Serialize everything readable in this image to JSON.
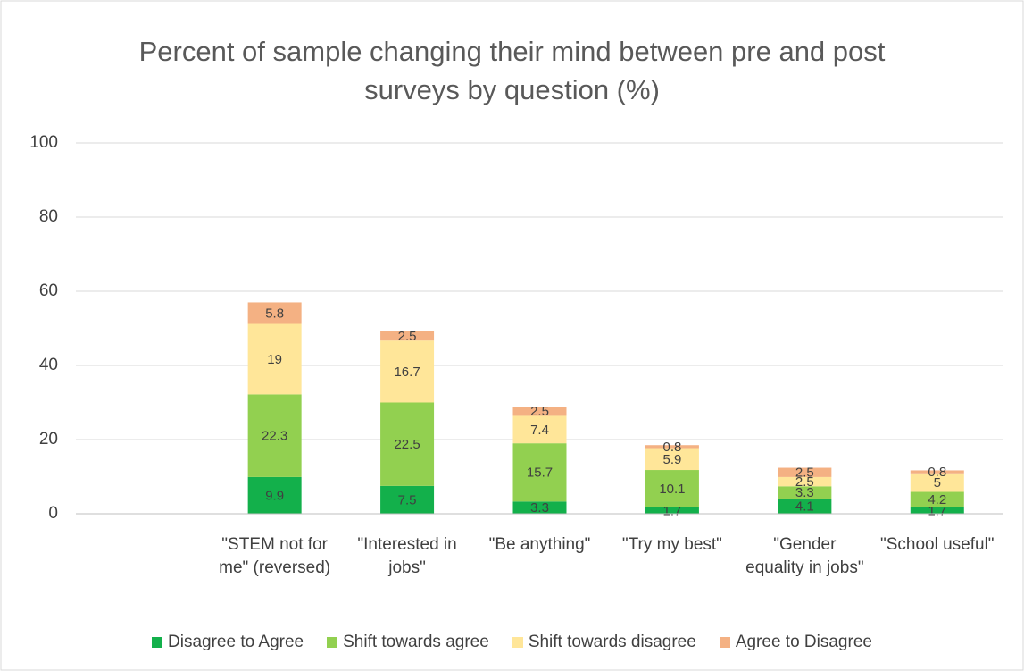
{
  "chart_data": {
    "type": "stacked_bar",
    "title": "Percent of sample changing their mind between pre and post surveys by question (%)",
    "categories": [
      null,
      "\"STEM not for me\" (reversed)",
      "\"Interested in jobs\"",
      "\"Be anything\"",
      "\"Try my best\"",
      "\"Gender equality in jobs\"",
      "\"School useful\""
    ],
    "series": [
      {
        "name": "Disagree to Agree",
        "color": "#13b04b",
        "values": [
          null,
          9.9,
          7.5,
          3.3,
          1.7,
          4.1,
          1.7
        ]
      },
      {
        "name": "Shift towards agree",
        "color": "#92d050",
        "values": [
          null,
          22.3,
          22.5,
          15.7,
          10.1,
          3.3,
          4.2
        ]
      },
      {
        "name": "Shift towards disagree",
        "color": "#ffe699",
        "values": [
          null,
          19,
          16.7,
          7.4,
          5.9,
          2.5,
          5
        ]
      },
      {
        "name": "Agree to Disagree",
        "color": "#f4b183",
        "values": [
          null,
          5.8,
          2.5,
          2.5,
          0.8,
          2.5,
          0.8
        ]
      }
    ],
    "ylim": [
      0,
      100
    ],
    "yticks": [
      0,
      20,
      40,
      60,
      80,
      100
    ],
    "grid": true,
    "legend": "bottom"
  }
}
